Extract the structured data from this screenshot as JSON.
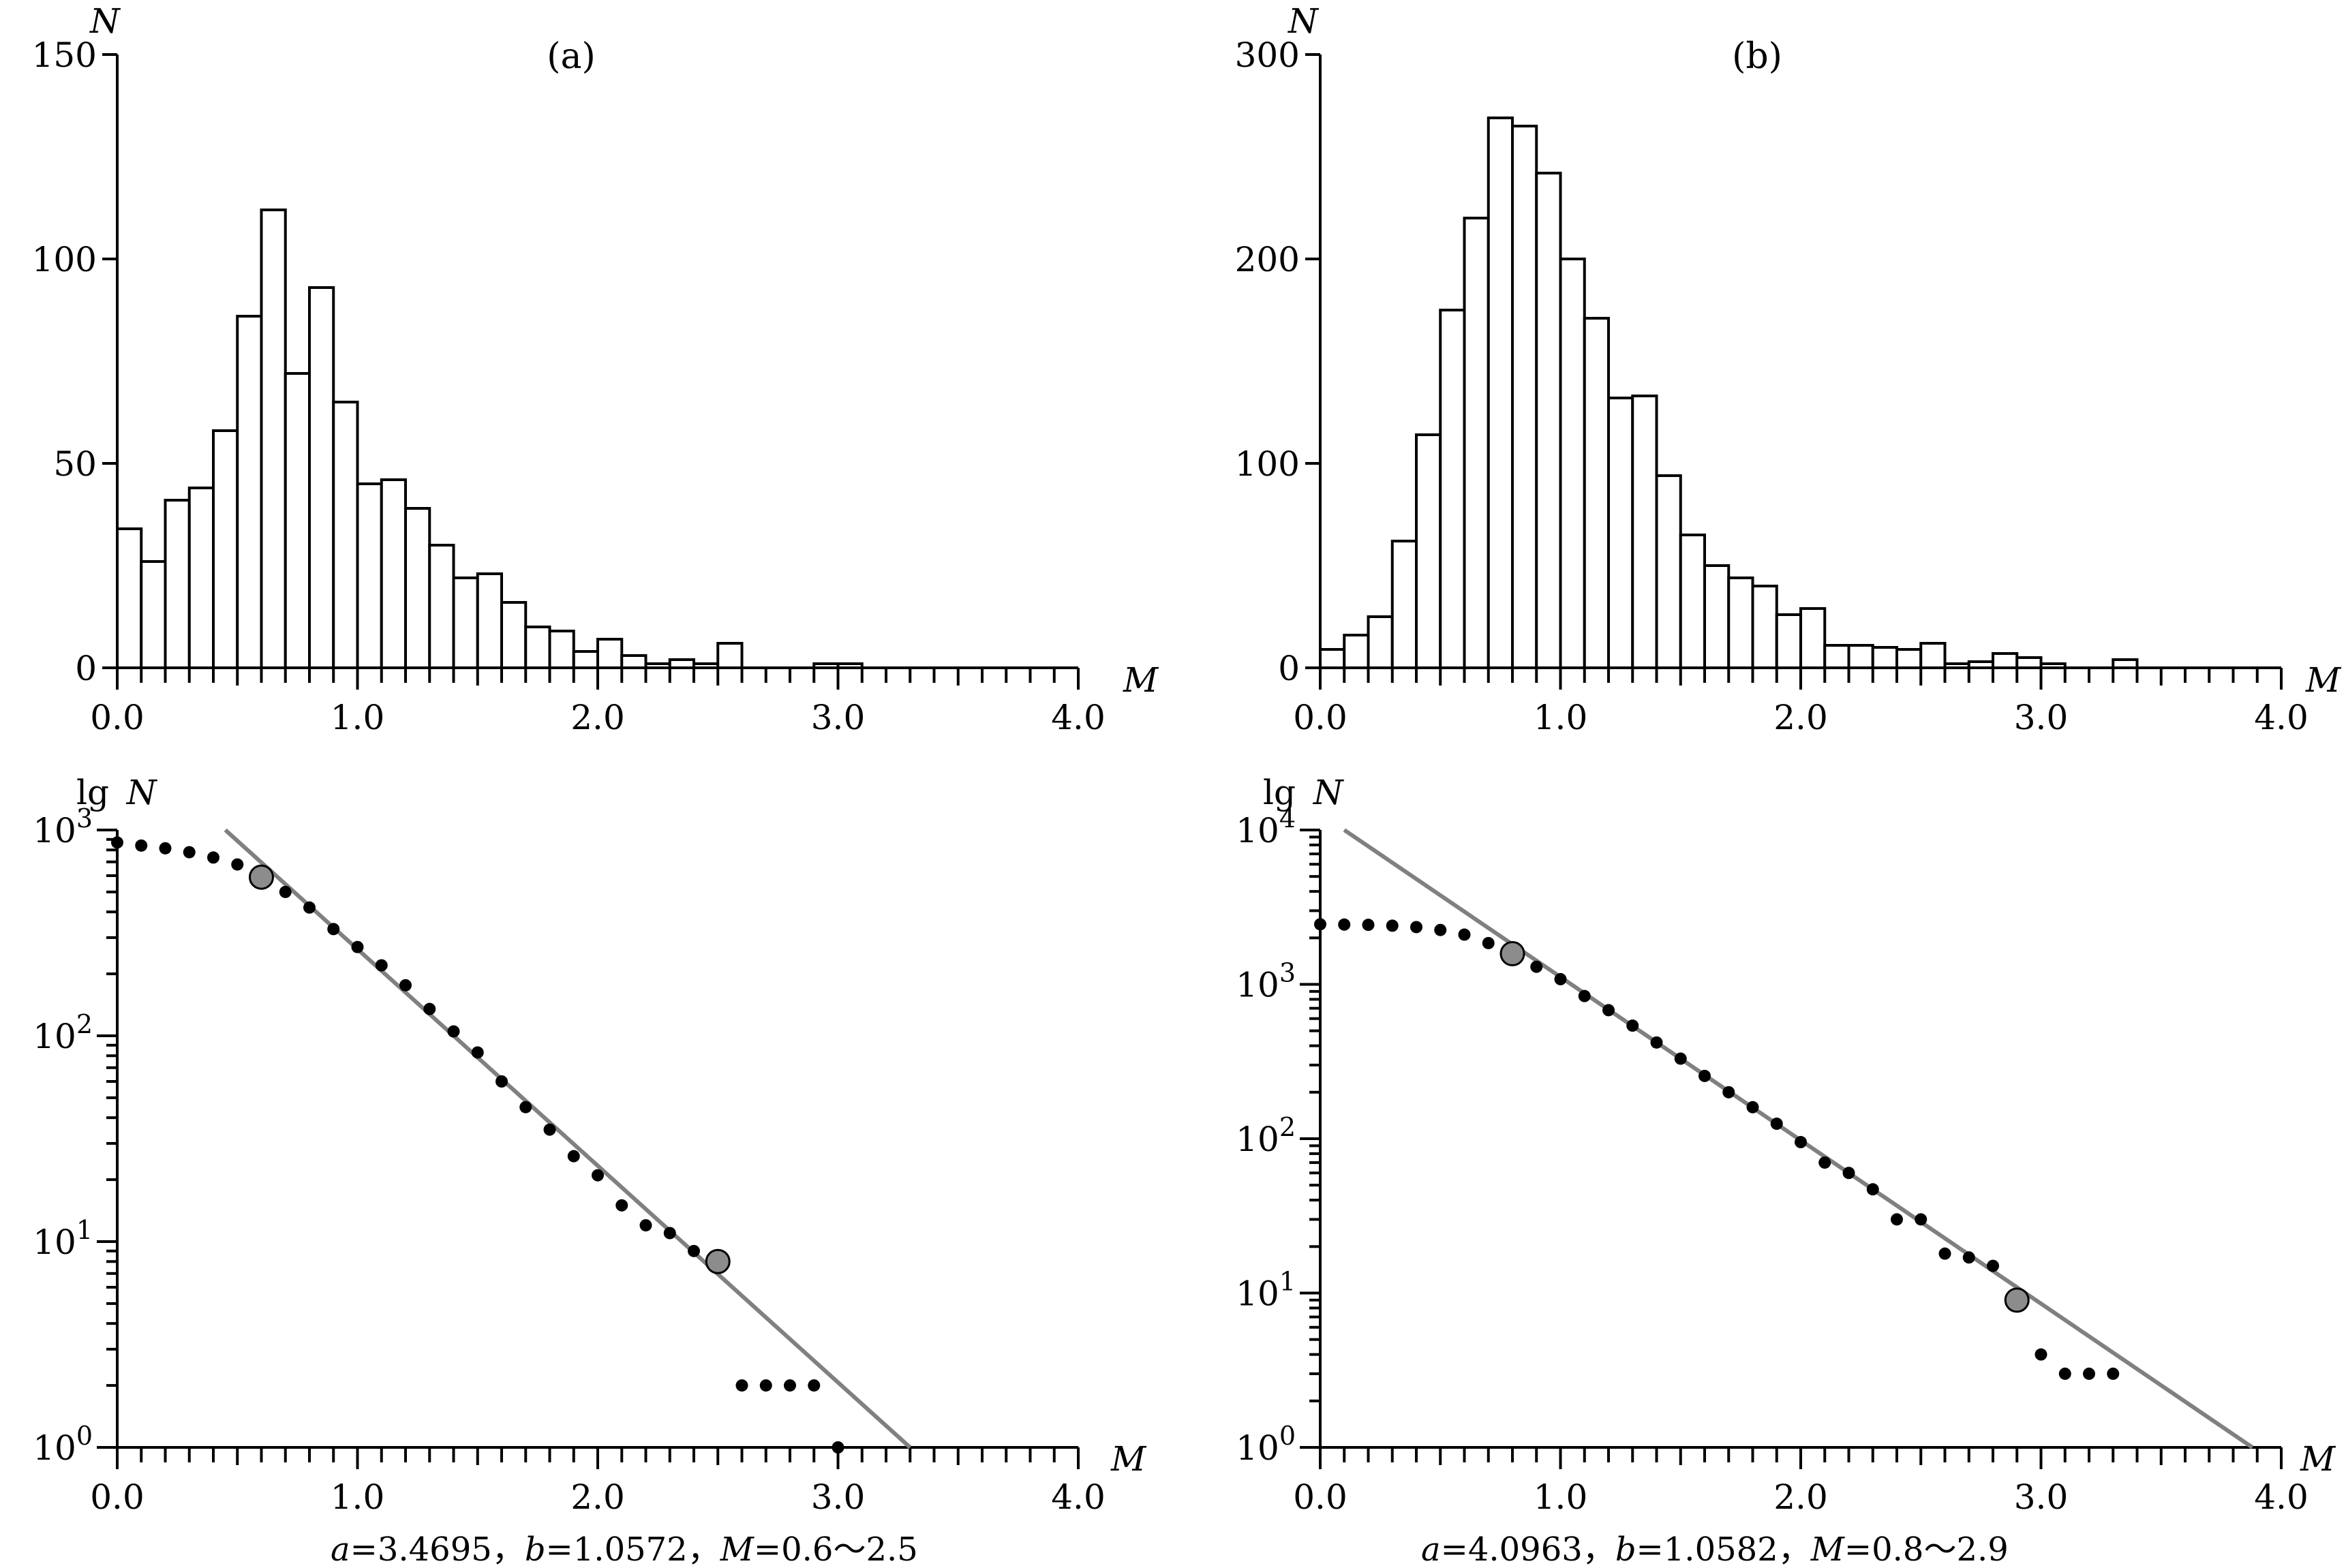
{
  "chart_data": [
    {
      "id": "a",
      "type": "bar",
      "panel_label": "(a)",
      "xlabel": "M",
      "ylabel": "N",
      "xlim": [
        0.0,
        4.0
      ],
      "ylim": [
        0,
        150
      ],
      "x_tick_labels": [
        "0.0",
        "1.0",
        "2.0",
        "3.0",
        "4.0"
      ],
      "y_tick_labels": [
        "0",
        "50",
        "100",
        "150"
      ],
      "bin_width": 0.1,
      "bins": [
        {
          "x": 0.0,
          "y": 34
        },
        {
          "x": 0.1,
          "y": 26
        },
        {
          "x": 0.2,
          "y": 41
        },
        {
          "x": 0.3,
          "y": 44
        },
        {
          "x": 0.4,
          "y": 58
        },
        {
          "x": 0.5,
          "y": 86
        },
        {
          "x": 0.6,
          "y": 112
        },
        {
          "x": 0.7,
          "y": 72
        },
        {
          "x": 0.8,
          "y": 93
        },
        {
          "x": 0.9,
          "y": 65
        },
        {
          "x": 1.0,
          "y": 45
        },
        {
          "x": 1.1,
          "y": 46
        },
        {
          "x": 1.2,
          "y": 39
        },
        {
          "x": 1.3,
          "y": 30
        },
        {
          "x": 1.4,
          "y": 22
        },
        {
          "x": 1.5,
          "y": 23
        },
        {
          "x": 1.6,
          "y": 16
        },
        {
          "x": 1.7,
          "y": 10
        },
        {
          "x": 1.8,
          "y": 9
        },
        {
          "x": 1.9,
          "y": 4
        },
        {
          "x": 2.0,
          "y": 7
        },
        {
          "x": 2.1,
          "y": 3
        },
        {
          "x": 2.2,
          "y": 1
        },
        {
          "x": 2.3,
          "y": 2
        },
        {
          "x": 2.4,
          "y": 1
        },
        {
          "x": 2.5,
          "y": 6
        },
        {
          "x": 2.9,
          "y": 1
        },
        {
          "x": 3.0,
          "y": 1
        }
      ]
    },
    {
      "id": "b",
      "type": "bar",
      "panel_label": "(b)",
      "xlabel": "M",
      "ylabel": "N",
      "xlim": [
        0.0,
        4.0
      ],
      "ylim": [
        0,
        300
      ],
      "x_tick_labels": [
        "0.0",
        "1.0",
        "2.0",
        "3.0",
        "4.0"
      ],
      "y_tick_labels": [
        "0",
        "100",
        "200",
        "300"
      ],
      "bin_width": 0.1,
      "bins": [
        {
          "x": 0.0,
          "y": 9
        },
        {
          "x": 0.1,
          "y": 16
        },
        {
          "x": 0.2,
          "y": 25
        },
        {
          "x": 0.3,
          "y": 62
        },
        {
          "x": 0.4,
          "y": 114
        },
        {
          "x": 0.5,
          "y": 175
        },
        {
          "x": 0.6,
          "y": 220
        },
        {
          "x": 0.7,
          "y": 269
        },
        {
          "x": 0.8,
          "y": 265
        },
        {
          "x": 0.9,
          "y": 242
        },
        {
          "x": 1.0,
          "y": 200
        },
        {
          "x": 1.1,
          "y": 171
        },
        {
          "x": 1.2,
          "y": 132
        },
        {
          "x": 1.3,
          "y": 133
        },
        {
          "x": 1.4,
          "y": 94
        },
        {
          "x": 1.5,
          "y": 65
        },
        {
          "x": 1.6,
          "y": 50
        },
        {
          "x": 1.7,
          "y": 44
        },
        {
          "x": 1.8,
          "y": 40
        },
        {
          "x": 1.9,
          "y": 26
        },
        {
          "x": 2.0,
          "y": 29
        },
        {
          "x": 2.1,
          "y": 11
        },
        {
          "x": 2.2,
          "y": 11
        },
        {
          "x": 2.3,
          "y": 10
        },
        {
          "x": 2.4,
          "y": 9
        },
        {
          "x": 2.5,
          "y": 12
        },
        {
          "x": 2.6,
          "y": 2
        },
        {
          "x": 2.7,
          "y": 3
        },
        {
          "x": 2.8,
          "y": 7
        },
        {
          "x": 2.9,
          "y": 5
        },
        {
          "x": 3.0,
          "y": 2
        },
        {
          "x": 3.3,
          "y": 4
        }
      ]
    },
    {
      "id": "c",
      "type": "scatter",
      "xlabel": "M",
      "ylabel_prefix": "lg",
      "ylabel": "N",
      "y_scale": "log",
      "xlim": [
        0.0,
        4.0
      ],
      "ylim": [
        1,
        1000
      ],
      "x_tick_labels": [
        "0.0",
        "1.0",
        "2.0",
        "3.0",
        "4.0"
      ],
      "y_tick_labels": [
        {
          "base": "10",
          "exp": "0",
          "value": 1
        },
        {
          "base": "10",
          "exp": "1",
          "value": 10
        },
        {
          "base": "10",
          "exp": "2",
          "value": 100
        },
        {
          "base": "10",
          "exp": "3",
          "value": 1000
        }
      ],
      "points": [
        {
          "x": 0.0,
          "y": 870
        },
        {
          "x": 0.1,
          "y": 840
        },
        {
          "x": 0.2,
          "y": 815
        },
        {
          "x": 0.3,
          "y": 780
        },
        {
          "x": 0.4,
          "y": 735
        },
        {
          "x": 0.5,
          "y": 680
        },
        {
          "x": 0.6,
          "y": 590
        },
        {
          "x": 0.7,
          "y": 500
        },
        {
          "x": 0.8,
          "y": 420
        },
        {
          "x": 0.9,
          "y": 330
        },
        {
          "x": 1.0,
          "y": 270
        },
        {
          "x": 1.1,
          "y": 220
        },
        {
          "x": 1.2,
          "y": 176
        },
        {
          "x": 1.3,
          "y": 135
        },
        {
          "x": 1.4,
          "y": 105
        },
        {
          "x": 1.5,
          "y": 83
        },
        {
          "x": 1.6,
          "y": 60
        },
        {
          "x": 1.7,
          "y": 45
        },
        {
          "x": 1.8,
          "y": 35
        },
        {
          "x": 1.9,
          "y": 26
        },
        {
          "x": 2.0,
          "y": 21
        },
        {
          "x": 2.1,
          "y": 15
        },
        {
          "x": 2.2,
          "y": 12
        },
        {
          "x": 2.3,
          "y": 11
        },
        {
          "x": 2.4,
          "y": 9
        },
        {
          "x": 2.5,
          "y": 8
        },
        {
          "x": 2.6,
          "y": 2
        },
        {
          "x": 2.7,
          "y": 2
        },
        {
          "x": 2.8,
          "y": 2
        },
        {
          "x": 2.9,
          "y": 2
        },
        {
          "x": 3.0,
          "y": 1
        }
      ],
      "highlighted_points": [
        {
          "x": 0.6,
          "y": 590
        },
        {
          "x": 2.5,
          "y": 8
        }
      ],
      "fit_line": {
        "x0": 0.45,
        "y0": 1000,
        "x1": 3.3,
        "y1": 1
      },
      "caption": {
        "a_label": "a",
        "a_value": "=3.4695，",
        "b_label": "b",
        "b_value": "=1.0572，",
        "m_label": "M",
        "m_value": "=0.6～2.5"
      }
    },
    {
      "id": "d",
      "type": "scatter",
      "xlabel": "M",
      "ylabel_prefix": "lg",
      "ylabel": "N",
      "y_scale": "log",
      "xlim": [
        0.0,
        4.0
      ],
      "ylim": [
        1,
        10000
      ],
      "x_tick_labels": [
        "0.0",
        "1.0",
        "2.0",
        "3.0",
        "4.0"
      ],
      "y_tick_labels": [
        {
          "base": "10",
          "exp": "0",
          "value": 1
        },
        {
          "base": "10",
          "exp": "1",
          "value": 10
        },
        {
          "base": "10",
          "exp": "2",
          "value": 100
        },
        {
          "base": "10",
          "exp": "3",
          "value": 1000
        },
        {
          "base": "10",
          "exp": "4",
          "value": 10000
        }
      ],
      "points": [
        {
          "x": 0.0,
          "y": 2450
        },
        {
          "x": 0.1,
          "y": 2440
        },
        {
          "x": 0.2,
          "y": 2430
        },
        {
          "x": 0.3,
          "y": 2400
        },
        {
          "x": 0.4,
          "y": 2350
        },
        {
          "x": 0.5,
          "y": 2250
        },
        {
          "x": 0.6,
          "y": 2100
        },
        {
          "x": 0.7,
          "y": 1850
        },
        {
          "x": 0.8,
          "y": 1580
        },
        {
          "x": 0.9,
          "y": 1300
        },
        {
          "x": 1.0,
          "y": 1080
        },
        {
          "x": 1.1,
          "y": 840
        },
        {
          "x": 1.2,
          "y": 680
        },
        {
          "x": 1.3,
          "y": 540
        },
        {
          "x": 1.4,
          "y": 420
        },
        {
          "x": 1.5,
          "y": 330
        },
        {
          "x": 1.6,
          "y": 255
        },
        {
          "x": 1.7,
          "y": 200
        },
        {
          "x": 1.8,
          "y": 160
        },
        {
          "x": 1.9,
          "y": 125
        },
        {
          "x": 2.0,
          "y": 95
        },
        {
          "x": 2.1,
          "y": 70
        },
        {
          "x": 2.2,
          "y": 60
        },
        {
          "x": 2.3,
          "y": 47
        },
        {
          "x": 2.4,
          "y": 30
        },
        {
          "x": 2.5,
          "y": 30
        },
        {
          "x": 2.6,
          "y": 18
        },
        {
          "x": 2.7,
          "y": 17
        },
        {
          "x": 2.8,
          "y": 15
        },
        {
          "x": 2.9,
          "y": 9
        },
        {
          "x": 3.0,
          "y": 4
        },
        {
          "x": 3.1,
          "y": 3
        },
        {
          "x": 3.2,
          "y": 3
        },
        {
          "x": 3.3,
          "y": 3
        }
      ],
      "highlighted_points": [
        {
          "x": 0.8,
          "y": 1580
        },
        {
          "x": 2.9,
          "y": 9
        }
      ],
      "fit_line": {
        "x0": 0.1,
        "y0": 10000,
        "x1": 3.88,
        "y1": 1
      },
      "caption": {
        "a_label": "a",
        "a_value": "=4.0963，",
        "b_label": "b",
        "b_value": "=1.0582，",
        "m_label": "M",
        "m_value": "=0.8～2.9"
      }
    }
  ]
}
